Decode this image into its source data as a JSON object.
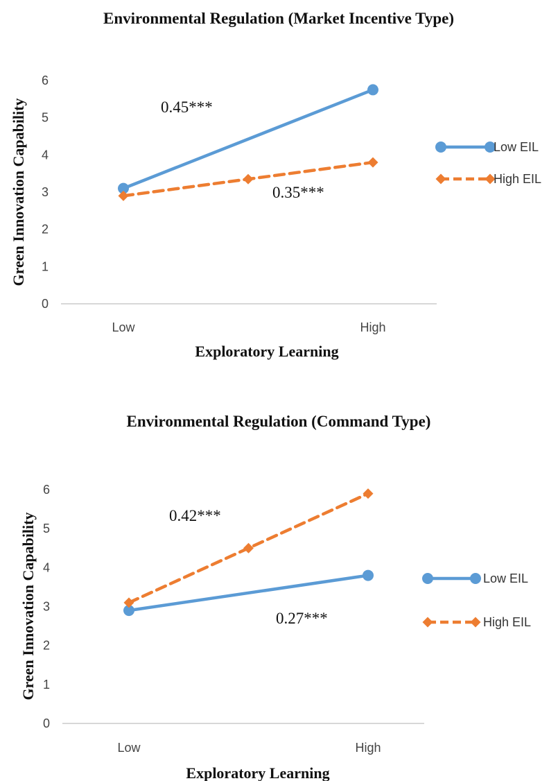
{
  "colors": {
    "low_eil": "#5B9BD5",
    "high_eil": "#ED7D31",
    "axis": "#BFBFBF"
  },
  "chart_data": [
    {
      "type": "line",
      "title": "Environmental Regulation (Market Incentive Type)",
      "xlabel": "Exploratory Learning",
      "ylabel": "Green Innovation Capability",
      "categories": [
        "Low",
        "High"
      ],
      "ylim": [
        0,
        6
      ],
      "yticks": [
        "0",
        "1",
        "2",
        "3",
        "4",
        "5",
        "6"
      ],
      "legend_position": "right",
      "grid": false,
      "series": [
        {
          "name": "Low EIL",
          "values": [
            3.1,
            5.75
          ],
          "style": "solid",
          "marker": "circle"
        },
        {
          "name": "High EIL",
          "values": [
            2.9,
            3.8
          ],
          "style": "dashed",
          "marker": "diamond"
        }
      ],
      "annotations": [
        {
          "text": "0.45***",
          "near_series": 0
        },
        {
          "text": "0.35***",
          "near_series": 1
        }
      ]
    },
    {
      "type": "line",
      "title": "Environmental Regulation (Command Type)",
      "xlabel": "Exploratory Learning",
      "ylabel": "Green Innovation Capability",
      "categories": [
        "Low",
        "High"
      ],
      "ylim": [
        0,
        6
      ],
      "yticks": [
        "0",
        "1",
        "2",
        "3",
        "4",
        "5",
        "6"
      ],
      "legend_position": "right",
      "grid": false,
      "series": [
        {
          "name": "Low EIL",
          "values": [
            2.9,
            3.8
          ],
          "style": "solid",
          "marker": "circle"
        },
        {
          "name": "High EIL",
          "values": [
            3.1,
            5.9
          ],
          "style": "dashed",
          "marker": "diamond"
        }
      ],
      "annotations": [
        {
          "text": "0.42***",
          "near_series": 1
        },
        {
          "text": "0.27***",
          "near_series": 0
        }
      ]
    }
  ]
}
